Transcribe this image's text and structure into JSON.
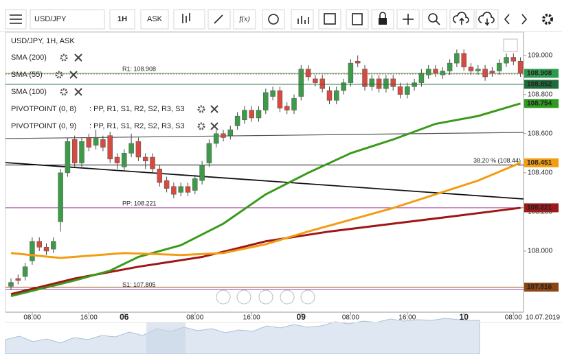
{
  "toolbar": {
    "symbol": "USD/JPY",
    "timeframe": "1H",
    "price_type": "ASK",
    "fx": "f(x)"
  },
  "chart_data": {
    "type": "candlestick",
    "title": "USD/JPY, 1H, ASK",
    "up_color": "#3e9a48",
    "down_color": "#d64a3f",
    "open": [
      107.82,
      107.86,
      107.87,
      107.95,
      108.05,
      108.02,
      108.01,
      108.15,
      108.4,
      108.57,
      108.45,
      108.58,
      108.54,
      108.57,
      108.59,
      108.48,
      108.43,
      108.5,
      108.56,
      108.48,
      108.48,
      108.42,
      108.36,
      108.33,
      108.3,
      108.33,
      108.31,
      108.36,
      108.45,
      108.55,
      108.6,
      108.59,
      108.64,
      108.67,
      108.72,
      108.68,
      108.72,
      108.79,
      108.82,
      108.74,
      108.72,
      108.79,
      108.93,
      108.88,
      108.88,
      108.82,
      108.77,
      108.82,
      108.86,
      108.97,
      108.93,
      108.84,
      108.88,
      108.83,
      108.88,
      108.84,
      108.8,
      108.84,
      108.86,
      108.9,
      108.93,
      108.9,
      108.92,
      108.96,
      109.01,
      108.94,
      108.92,
      108.93,
      108.92,
      108.92,
      108.96,
      108.99,
      108.97
    ],
    "high": [
      107.86,
      107.88,
      107.94,
      108.07,
      108.07,
      108.04,
      108.07,
      108.42,
      108.58,
      108.59,
      108.58,
      108.6,
      108.62,
      108.59,
      108.61,
      108.5,
      108.52,
      108.6,
      108.58,
      108.5,
      108.5,
      108.44,
      108.38,
      108.35,
      108.35,
      108.35,
      108.39,
      108.46,
      108.57,
      108.62,
      108.62,
      108.64,
      108.71,
      108.74,
      108.74,
      108.74,
      108.83,
      108.84,
      108.84,
      108.76,
      108.8,
      108.95,
      108.95,
      108.9,
      108.9,
      108.84,
      108.84,
      108.88,
      108.98,
      109.0,
      108.95,
      108.9,
      108.9,
      108.9,
      108.9,
      108.86,
      108.86,
      108.88,
      108.93,
      108.95,
      108.95,
      108.94,
      108.98,
      109.03,
      109.03,
      108.96,
      108.95,
      108.95,
      108.94,
      108.98,
      109.01,
      109.01,
      108.99
    ],
    "low": [
      107.8,
      107.83,
      107.85,
      107.93,
      108.0,
      107.98,
      107.99,
      108.1,
      108.38,
      108.43,
      108.43,
      108.51,
      108.52,
      108.51,
      108.45,
      108.42,
      108.41,
      108.48,
      108.46,
      108.42,
      108.4,
      108.33,
      108.3,
      108.27,
      108.28,
      108.28,
      108.29,
      108.34,
      108.43,
      108.53,
      108.56,
      108.57,
      108.62,
      108.65,
      108.66,
      108.66,
      108.7,
      108.77,
      108.71,
      108.7,
      108.7,
      108.77,
      108.87,
      108.84,
      108.81,
      108.75,
      108.75,
      108.8,
      108.84,
      108.94,
      108.82,
      108.82,
      108.81,
      108.81,
      108.82,
      108.78,
      108.78,
      108.82,
      108.84,
      108.88,
      108.89,
      108.88,
      108.9,
      108.94,
      108.92,
      108.9,
      108.9,
      108.87,
      108.89,
      108.9,
      108.94,
      108.95,
      108.89
    ],
    "close": [
      107.84,
      107.85,
      107.92,
      108.05,
      108.02,
      108.0,
      108.05,
      108.4,
      108.56,
      108.45,
      108.56,
      108.53,
      108.58,
      108.53,
      108.47,
      108.45,
      108.5,
      108.55,
      108.48,
      108.46,
      108.42,
      108.35,
      108.32,
      108.29,
      108.33,
      108.3,
      108.37,
      108.44,
      108.55,
      108.6,
      108.58,
      108.62,
      108.69,
      108.72,
      108.68,
      108.72,
      108.81,
      108.82,
      108.73,
      108.72,
      108.78,
      108.93,
      108.89,
      108.86,
      108.83,
      108.77,
      108.82,
      108.86,
      108.96,
      108.96,
      108.84,
      108.88,
      108.83,
      108.88,
      108.84,
      108.8,
      108.84,
      108.86,
      108.91,
      108.93,
      108.91,
      108.92,
      108.96,
      109.01,
      108.94,
      108.92,
      108.93,
      108.89,
      108.91,
      108.96,
      108.99,
      108.97,
      108.91
    ],
    "series": [
      {
        "name": "SMA (200)",
        "color": "#a01515",
        "x": [
          0,
          9,
          18,
          27,
          36,
          45,
          54,
          63,
          72
        ],
        "values": [
          107.78,
          107.86,
          107.92,
          107.97,
          108.05,
          108.1,
          108.14,
          108.18,
          108.221
        ]
      },
      {
        "name": "SMA (55)",
        "color": "#3a9a1a",
        "x": [
          0,
          9,
          14,
          18,
          24,
          30,
          36,
          42,
          48,
          54,
          60,
          66,
          72
        ],
        "values": [
          107.77,
          107.85,
          107.9,
          107.97,
          108.03,
          108.14,
          108.29,
          108.4,
          108.5,
          108.57,
          108.65,
          108.69,
          108.754
        ]
      },
      {
        "name": "SMA (100)",
        "color": "#f39c12",
        "x": [
          0,
          7,
          16,
          24,
          30,
          36,
          42,
          48,
          54,
          60,
          66,
          72
        ],
        "values": [
          107.99,
          107.965,
          107.99,
          107.98,
          107.99,
          108.035,
          108.1,
          108.16,
          108.22,
          108.29,
          108.36,
          108.451
        ]
      }
    ],
    "pivots": [
      {
        "name": "PIVOTPOINT (0, 8)",
        "levels": ": PP, R1, S1, R2, S2, R3, S3"
      },
      {
        "name": "PIVOTPOINT (0, 9)",
        "levels": ": PP, R1, S1, R2, S2, R3, S3"
      }
    ],
    "levels": [
      {
        "label": "R1: 108.908",
        "value": 108.908,
        "color": "#3aa05a"
      },
      {
        "label": "PP: 108.221",
        "value": 108.221,
        "color": "#a040a0"
      },
      {
        "label": "S1: 107.805",
        "value": 107.805,
        "color": "#a040a0"
      },
      {
        "label": "38.20 % (108.44)",
        "value": 108.44,
        "color": "#000000"
      }
    ],
    "price_labels": [
      {
        "value": 108.908,
        "color": "#2e9a4e"
      },
      {
        "value": 108.852,
        "color": "#1f6b3a",
        "line": true
      },
      {
        "value": 108.754,
        "color": "#2f9a1f"
      },
      {
        "value": 108.451,
        "color": "#f39c12"
      },
      {
        "value": 108.221,
        "color": "#9b1b1b"
      },
      {
        "value": 107.816,
        "color": "#8b4513",
        "line": true
      }
    ],
    "ylim": [
      107.688,
      109.118
    ],
    "yticks": [
      {
        "value": 108,
        "label": "108.000"
      },
      {
        "value": 108.2,
        "label": "108.200"
      },
      {
        "value": 108.4,
        "label": "108.400"
      },
      {
        "value": 108.6,
        "label": "108.600"
      },
      {
        "value": 108.8,
        "label": "108.800"
      },
      {
        "value": 109,
        "label": "109.000"
      }
    ],
    "xticks": [
      {
        "value": 3,
        "label": "08:00"
      },
      {
        "value": 11,
        "label": "16:00"
      },
      {
        "value": 16,
        "label": "06"
      },
      {
        "value": 26,
        "label": "08:00"
      },
      {
        "value": 34,
        "label": "16:00"
      },
      {
        "value": 41,
        "label": "09"
      },
      {
        "value": 48,
        "label": "08:00"
      },
      {
        "value": 56,
        "label": "16:00"
      },
      {
        "value": 64,
        "label": "10"
      },
      {
        "value": 71,
        "label": "08:00"
      }
    ],
    "x_end_label": "10.07.2019"
  }
}
